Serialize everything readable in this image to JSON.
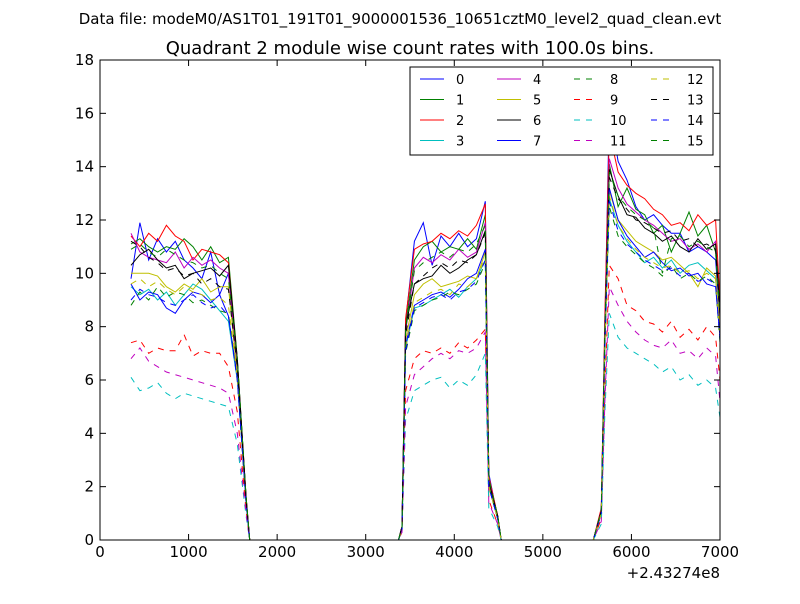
{
  "figure": {
    "suptitle": "Data file: modeM0/AS1T01_191T01_9000001536_10651cztM0_level2_quad_clean.evt",
    "offset_label": "+2.43274e8"
  },
  "chart_data": {
    "type": "line",
    "title": "Quadrant 2 module wise count rates with 100.0s bins.",
    "xlabel": "",
    "ylabel": "",
    "xlim": [
      0,
      7000
    ],
    "ylim": [
      0,
      18
    ],
    "x_ticks": [
      0,
      1000,
      2000,
      3000,
      4000,
      5000,
      6000,
      7000
    ],
    "y_ticks": [
      0,
      2,
      4,
      6,
      8,
      10,
      12,
      14,
      16,
      18
    ],
    "x_offset": "+2.43274e8",
    "grid": false,
    "legend": {
      "position": "top-right",
      "columns": 4
    },
    "x": [
      350,
      450,
      550,
      650,
      750,
      850,
      950,
      1050,
      1150,
      1250,
      1350,
      1450,
      1550,
      1650,
      1690,
      3370,
      3410,
      3450,
      3550,
      3650,
      3750,
      3850,
      3950,
      4050,
      4150,
      4250,
      4350,
      4390,
      4490,
      4530,
      4590,
      5570,
      5660,
      5700,
      5750,
      5850,
      5950,
      6050,
      6150,
      6250,
      6350,
      6450,
      6550,
      6650,
      6750,
      6850,
      6950,
      7000
    ],
    "series": [
      {
        "name": "0",
        "color": "#0000ff",
        "dash": "solid",
        "values": [
          9.8,
          11.9,
          10.5,
          11.3,
          10.8,
          11.2,
          10.5,
          10.2,
          9.8,
          10.8,
          9.2,
          10.0,
          6.5,
          1.5,
          0,
          0,
          0.5,
          8.2,
          11.2,
          11.9,
          10.3,
          11.4,
          11.0,
          11.5,
          11.0,
          11.3,
          12.7,
          2.5,
          0.8,
          0,
          0,
          0,
          1.0,
          8.0,
          16.2,
          14.2,
          13.5,
          12.5,
          12.0,
          12.2,
          11.8,
          11.5,
          11.5,
          10.8,
          11.0,
          10.8,
          10.5,
          8.3
        ]
      },
      {
        "name": "1",
        "color": "#008000",
        "dash": "solid",
        "values": [
          11.1,
          11.3,
          11.0,
          10.8,
          11.0,
          10.9,
          11.3,
          11.0,
          10.5,
          11.0,
          10.4,
          10.6,
          6.8,
          1.6,
          0,
          0,
          0.5,
          8.0,
          10.5,
          11.0,
          11.2,
          10.8,
          11.0,
          10.9,
          11.3,
          10.9,
          12.2,
          2.3,
          0.9,
          0,
          0,
          0,
          1.0,
          7.8,
          14.1,
          12.5,
          13.2,
          12.4,
          12.2,
          11.5,
          11.8,
          10.8,
          11.5,
          12.3,
          11.4,
          11.8,
          10.8,
          8.5
        ]
      },
      {
        "name": "2",
        "color": "#ff0000",
        "dash": "solid",
        "values": [
          11.4,
          11.0,
          11.5,
          11.2,
          11.8,
          11.4,
          11.2,
          10.5,
          10.9,
          10.8,
          10.7,
          10.4,
          6.7,
          1.6,
          0,
          0,
          0.5,
          8.3,
          10.9,
          11.1,
          11.2,
          11.5,
          11.3,
          11.6,
          11.4,
          11.8,
          12.6,
          2.4,
          0.9,
          0,
          0,
          0,
          1.2,
          8.5,
          15.3,
          13.8,
          13.3,
          13.0,
          12.8,
          12.4,
          12.2,
          11.8,
          11.9,
          11.6,
          12.2,
          11.8,
          12.0,
          8.9
        ]
      },
      {
        "name": "3",
        "color": "#00bfbf",
        "dash": "solid",
        "values": [
          9.5,
          9.2,
          9.4,
          9.0,
          9.3,
          8.8,
          9.2,
          9.6,
          9.4,
          9.0,
          8.6,
          8.2,
          6.0,
          1.4,
          0,
          0,
          0.4,
          7.2,
          8.7,
          8.8,
          9.0,
          9.2,
          9.4,
          9.1,
          9.5,
          9.8,
          10.5,
          2.0,
          0.8,
          0,
          0,
          0,
          1.0,
          7.2,
          12.8,
          11.8,
          11.2,
          10.8,
          10.4,
          10.6,
          10.2,
          10.5,
          10.0,
          10.3,
          10.4,
          10.1,
          9.8,
          7.8
        ]
      },
      {
        "name": "4",
        "color": "#bf00bf",
        "dash": "solid",
        "values": [
          11.5,
          10.8,
          10.6,
          10.5,
          10.4,
          10.8,
          10.2,
          10.6,
          10.3,
          10.5,
          10.2,
          10.0,
          6.5,
          1.5,
          0,
          0,
          0.5,
          7.8,
          10.2,
          10.6,
          10.4,
          10.7,
          10.5,
          10.9,
          10.6,
          10.8,
          11.9,
          2.3,
          0.8,
          0,
          0,
          0,
          1.1,
          7.9,
          14.3,
          13.2,
          12.6,
          12.3,
          12.0,
          11.8,
          11.5,
          11.2,
          11.3,
          10.9,
          11.1,
          10.8,
          11.2,
          8.2
        ]
      },
      {
        "name": "5",
        "color": "#bfbf00",
        "dash": "solid",
        "values": [
          10.0,
          10.0,
          10.0,
          9.9,
          9.5,
          9.3,
          9.6,
          9.4,
          9.8,
          9.3,
          9.5,
          9.5,
          6.2,
          1.5,
          0,
          0,
          0.4,
          7.5,
          9.2,
          9.6,
          9.8,
          9.5,
          9.6,
          9.7,
          9.9,
          9.8,
          10.8,
          2.1,
          0.8,
          0,
          0,
          0,
          1.0,
          7.4,
          13.1,
          12.0,
          11.6,
          11.2,
          11.0,
          10.8,
          10.5,
          10.6,
          10.3,
          10.0,
          9.5,
          10.2,
          9.9,
          7.9
        ]
      },
      {
        "name": "6",
        "color": "#000000",
        "dash": "solid",
        "values": [
          10.3,
          10.7,
          10.9,
          10.5,
          10.2,
          10.3,
          9.8,
          10.0,
          10.1,
          10.2,
          9.9,
          10.3,
          6.8,
          1.6,
          0,
          0,
          0.5,
          8.0,
          9.6,
          9.8,
          9.9,
          10.3,
          10.0,
          10.2,
          10.5,
          10.7,
          11.6,
          2.2,
          0.9,
          0,
          0,
          0,
          1.1,
          7.8,
          13.9,
          12.9,
          12.2,
          12.1,
          11.7,
          11.5,
          11.2,
          11.4,
          11.0,
          10.8,
          11.3,
          10.9,
          11.1,
          8.6
        ]
      },
      {
        "name": "7",
        "color": "#0000ff",
        "dash": "solid",
        "values": [
          9.6,
          9.0,
          9.3,
          9.2,
          8.7,
          8.5,
          9.0,
          9.3,
          9.2,
          8.9,
          9.2,
          8.4,
          6.1,
          1.4,
          0,
          0,
          0.4,
          7.3,
          8.8,
          9.0,
          9.2,
          9.3,
          9.1,
          9.4,
          9.8,
          10.0,
          10.9,
          2.0,
          0.8,
          0,
          0,
          0,
          1.0,
          7.5,
          13.2,
          12.0,
          11.4,
          11.0,
          10.6,
          10.8,
          10.4,
          10.1,
          10.2,
          9.9,
          10.0,
          9.6,
          9.5,
          7.6
        ]
      },
      {
        "name": "8",
        "color": "#008000",
        "dash": "dashed",
        "values": [
          8.8,
          9.3,
          9.0,
          9.5,
          9.1,
          9.3,
          9.2,
          8.9,
          9.0,
          8.8,
          8.6,
          8.5,
          6.0,
          1.4,
          0,
          0,
          0.4,
          7.0,
          8.6,
          8.8,
          9.0,
          9.1,
          9.3,
          9.2,
          9.4,
          9.6,
          10.4,
          2.0,
          0.8,
          0,
          0,
          0,
          1.0,
          7.3,
          12.5,
          11.4,
          11.0,
          10.7,
          10.4,
          10.2,
          9.9,
          10.3,
          9.8,
          10.0,
          9.7,
          9.9,
          9.6,
          7.4
        ]
      },
      {
        "name": "9",
        "color": "#ff0000",
        "dash": "dashed",
        "values": [
          7.4,
          7.5,
          7.0,
          7.2,
          7.1,
          7.1,
          7.7,
          6.9,
          7.1,
          7.0,
          7.0,
          6.5,
          4.8,
          1.1,
          0,
          0,
          0.3,
          5.6,
          6.8,
          7.1,
          7.0,
          7.2,
          7.0,
          7.4,
          7.2,
          7.5,
          7.9,
          1.5,
          0.6,
          0,
          0,
          0,
          0.8,
          5.6,
          10.3,
          9.8,
          8.8,
          8.6,
          8.2,
          8.1,
          7.8,
          8.2,
          7.6,
          7.9,
          7.5,
          8.0,
          7.6,
          6.0
        ]
      },
      {
        "name": "10",
        "color": "#00bfbf",
        "dash": "dashed",
        "values": [
          6.1,
          5.6,
          5.7,
          5.9,
          5.5,
          5.3,
          5.5,
          5.4,
          5.3,
          5.2,
          5.1,
          5.0,
          3.6,
          0.9,
          0,
          0,
          0.3,
          4.5,
          5.6,
          5.8,
          6.0,
          6.1,
          5.7,
          6.0,
          5.8,
          6.2,
          7.0,
          1.2,
          0.5,
          0,
          0,
          0,
          0.6,
          4.8,
          8.5,
          7.6,
          7.2,
          7.0,
          6.8,
          6.6,
          6.3,
          6.5,
          6.0,
          6.2,
          5.8,
          6.0,
          5.7,
          4.6
        ]
      },
      {
        "name": "11",
        "color": "#bf00bf",
        "dash": "dashed",
        "values": [
          6.8,
          7.2,
          6.7,
          6.5,
          6.3,
          6.2,
          6.1,
          6.0,
          5.9,
          5.8,
          5.7,
          5.5,
          4.0,
          1.0,
          0,
          0,
          0.3,
          5.0,
          6.2,
          6.5,
          6.8,
          7.0,
          6.8,
          7.1,
          7.0,
          7.2,
          7.8,
          1.4,
          0.6,
          0,
          0,
          0,
          0.7,
          5.2,
          9.5,
          8.8,
          8.2,
          7.8,
          7.5,
          7.3,
          7.2,
          7.5,
          7.0,
          7.1,
          6.8,
          7.2,
          6.9,
          5.2
        ]
      },
      {
        "name": "12",
        "color": "#bfbf00",
        "dash": "dashed",
        "values": [
          9.6,
          9.8,
          9.5,
          9.7,
          9.4,
          9.2,
          9.5,
          9.3,
          9.2,
          9.0,
          9.1,
          8.8,
          6.1,
          1.4,
          0,
          0,
          0.4,
          7.2,
          8.9,
          9.1,
          9.3,
          9.4,
          9.2,
          9.6,
          9.5,
          9.8,
          10.6,
          2.0,
          0.8,
          0,
          0,
          0,
          1.0,
          7.3,
          12.9,
          11.8,
          11.3,
          10.9,
          10.6,
          10.4,
          10.2,
          10.3,
          10.0,
          10.1,
          9.8,
          10.0,
          9.8,
          7.7
        ]
      },
      {
        "name": "13",
        "color": "#000000",
        "dash": "dashed",
        "values": [
          11.2,
          11.0,
          10.6,
          10.4,
          10.1,
          10.2,
          9.9,
          10.0,
          9.6,
          9.8,
          9.5,
          9.4,
          6.5,
          1.5,
          0,
          0,
          0.5,
          7.7,
          9.6,
          9.9,
          10.2,
          10.4,
          10.2,
          10.5,
          10.4,
          10.7,
          11.5,
          2.2,
          0.9,
          0,
          0,
          0,
          1.1,
          7.8,
          13.6,
          12.8,
          12.4,
          12.0,
          11.9,
          11.7,
          11.5,
          11.6,
          11.2,
          11.3,
          11.0,
          11.1,
          10.9,
          8.4
        ]
      },
      {
        "name": "14",
        "color": "#0000ff",
        "dash": "dashed",
        "values": [
          9.0,
          9.4,
          9.2,
          9.1,
          8.9,
          8.8,
          9.0,
          9.2,
          8.9,
          8.7,
          8.8,
          8.4,
          6.0,
          1.4,
          0,
          0,
          0.4,
          7.1,
          8.7,
          8.9,
          9.1,
          9.2,
          9.0,
          9.3,
          9.4,
          9.7,
          10.5,
          2.0,
          0.8,
          0,
          0,
          0,
          1.0,
          7.4,
          12.7,
          11.6,
          11.1,
          10.8,
          10.5,
          10.3,
          10.1,
          10.2,
          9.9,
          10.0,
          9.7,
          9.8,
          9.6,
          7.5
        ]
      },
      {
        "name": "15",
        "color": "#008000",
        "dash": "dashed",
        "values": [
          10.9,
          11.1,
          10.8,
          10.6,
          10.9,
          10.7,
          10.5,
          10.4,
          10.2,
          10.3,
          10.0,
          9.8,
          6.8,
          1.6,
          0,
          0,
          0.5,
          7.9,
          10.1,
          10.4,
          10.6,
          10.8,
          10.6,
          10.9,
          10.8,
          11.1,
          11.8,
          2.3,
          0.9,
          0,
          0,
          0,
          1.1,
          7.9,
          13.8,
          12.9,
          12.5,
          12.2,
          12.0,
          11.7,
          10.0,
          11.3,
          11.4,
          11.0,
          11.2,
          11.0,
          10.8,
          8.4
        ]
      }
    ]
  }
}
